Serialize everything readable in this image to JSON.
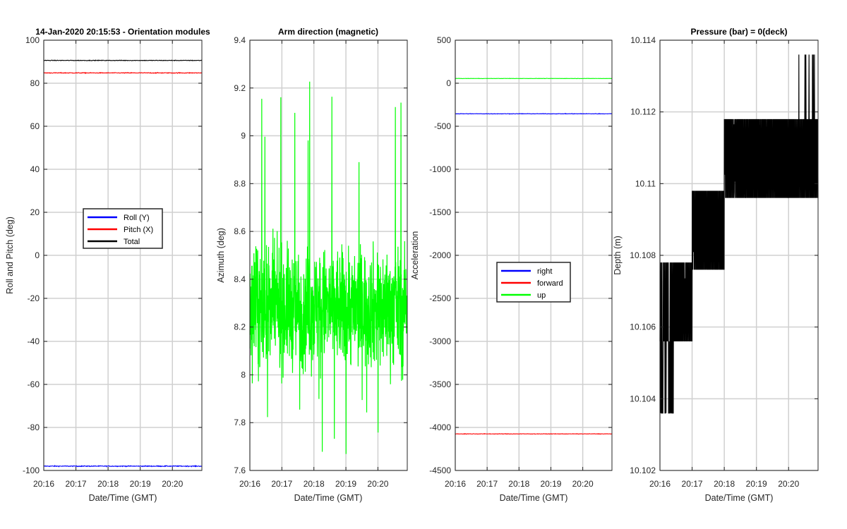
{
  "chart_data": [
    {
      "type": "line",
      "title": "14-Jan-2020 20:15:53 - Orientation modules",
      "xlabel": "Date/Time (GMT)",
      "ylabel": "Roll and Pitch (deg)",
      "xlim": [
        "20:16",
        "20:20:55"
      ],
      "ylim": [
        -100,
        100
      ],
      "xticks": [
        "20:16",
        "20:17",
        "20:18",
        "20:19",
        "20:20"
      ],
      "yticks": [
        "-100",
        "-80",
        "-60",
        "-40",
        "-20",
        "0",
        "20",
        "40",
        "60",
        "80",
        "100"
      ],
      "grid": true,
      "legend_position": "center",
      "series": [
        {
          "name": "Roll (Y)",
          "color": "#0000ff",
          "level": -98,
          "noise": 0.35
        },
        {
          "name": "Pitch (X)",
          "color": "#ff0000",
          "level": 84.8,
          "noise": 0.3
        },
        {
          "name": "Total",
          "color": "#000000",
          "level": 90.6,
          "noise": 0.25
        }
      ]
    },
    {
      "type": "line",
      "title": "Arm direction (magnetic)",
      "xlabel": "Date/Time (GMT)",
      "ylabel": "Azimuth (deg)",
      "xlim": [
        "20:16",
        "20:20:55"
      ],
      "ylim": [
        7.6,
        9.4
      ],
      "xticks": [
        "20:16",
        "20:17",
        "20:18",
        "20:19",
        "20:20"
      ],
      "yticks": [
        "7.6",
        "7.8",
        "8",
        "8.2",
        "8.4",
        "8.6",
        "8.8",
        "9",
        "9.2",
        "9.4"
      ],
      "grid": true,
      "series": [
        {
          "name": "",
          "color": "#00ff00",
          "mean": 8.28,
          "range": [
            7.65,
            9.27
          ]
        }
      ]
    },
    {
      "type": "line",
      "title": "",
      "xlabel": "Date/Time (GMT)",
      "ylabel": "Acceleration",
      "xlim": [
        "20:16",
        "20:20:55"
      ],
      "ylim": [
        -4500,
        500
      ],
      "xticks": [
        "20:16",
        "20:17",
        "20:18",
        "20:19",
        "20:20"
      ],
      "yticks": [
        "-4500",
        "-4000",
        "-3500",
        "-3000",
        "-2500",
        "-2000",
        "-1500",
        "-1000",
        "-500",
        "0",
        "500"
      ],
      "grid": true,
      "legend_position": "center",
      "series": [
        {
          "name": "right",
          "color": "#0000ff",
          "level": -355,
          "noise": 5
        },
        {
          "name": "forward",
          "color": "#ff0000",
          "level": -4075,
          "noise": 5
        },
        {
          "name": "up",
          "color": "#00ff00",
          "level": 55,
          "noise": 3
        }
      ]
    },
    {
      "type": "line",
      "title": "Pressure (bar) = 0(deck)",
      "xlabel": "Date/Time (GMT)",
      "ylabel": "Depth (m)",
      "xlim": [
        "20:16",
        "20:20:55"
      ],
      "ylim": [
        10.102,
        10.114
      ],
      "xticks": [
        "20:16",
        "20:17",
        "20:18",
        "20:19",
        "20:20"
      ],
      "yticks": [
        "10.102",
        "10.104",
        "10.106",
        "10.108",
        "10.11",
        "10.112",
        "10.114"
      ],
      "grid": true,
      "series": [
        {
          "name": "",
          "color": "#000000",
          "levels": [
            {
              "from": "20:16",
              "to": "20:17",
              "lo": 10.1056,
              "hi": 10.1078
            },
            {
              "from": "20:17",
              "to": "20:18",
              "lo": 10.1076,
              "hi": 10.1098
            },
            {
              "from": "20:18",
              "to": "20:20:55",
              "lo": 10.1096,
              "hi": 10.1118
            }
          ],
          "spikes": [
            10.1036,
            10.1136
          ]
        }
      ]
    }
  ]
}
